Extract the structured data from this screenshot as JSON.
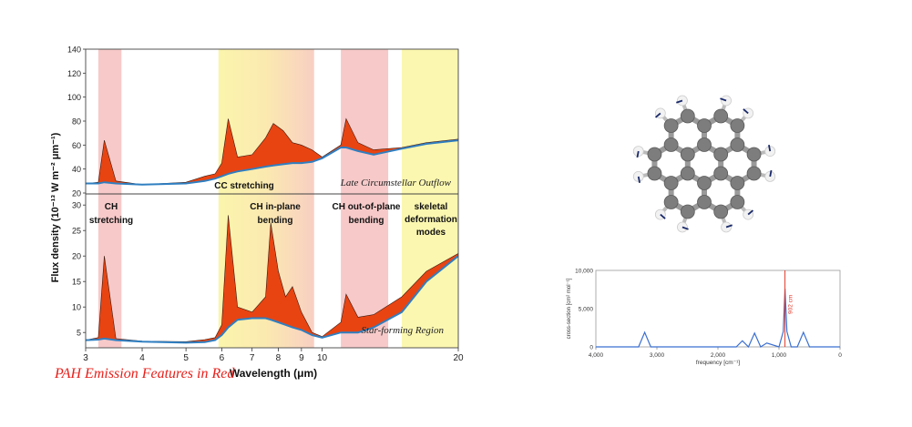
{
  "caption": "PAH Emission Features in Red",
  "colors": {
    "red_band": "#f7c9c9",
    "yellow_band": "#fbf7b0",
    "emission_fill": "#e84412",
    "continuum": "#2f7fc1",
    "caption": "#e8201b"
  },
  "chart_data": [
    {
      "type": "area",
      "y_axis_label": "Flux density (10⁻¹³ W m⁻² μm⁻¹)",
      "xlabel": "Wavelength (μm)",
      "x_scale": "log",
      "x_ticks": [
        3,
        4,
        5,
        6,
        7,
        8,
        9,
        10,
        20
      ],
      "xlim": [
        3,
        20
      ],
      "bands": [
        {
          "x0": 3.2,
          "x1": 3.6,
          "color": "red"
        },
        {
          "x0": 5.9,
          "x1": 9.6,
          "color": "yellow-to-red"
        },
        {
          "x0": 11.0,
          "x1": 14.0,
          "color": "red"
        },
        {
          "x0": 15.0,
          "x1": 20.0,
          "color": "yellow"
        }
      ],
      "panels": [
        {
          "name": "Late Circumstellar Outflow",
          "ylim": [
            20,
            140
          ],
          "y_ticks": [
            20,
            40,
            60,
            80,
            100,
            120,
            140
          ],
          "x": [
            3.0,
            3.2,
            3.3,
            3.5,
            4.0,
            5.0,
            5.5,
            5.8,
            6.0,
            6.2,
            6.5,
            7.0,
            7.5,
            7.8,
            8.2,
            8.6,
            9.0,
            9.5,
            10.0,
            11.0,
            11.3,
            12.0,
            13.0,
            15.0,
            17.0,
            20.0
          ],
          "continuum": [
            28,
            28,
            29,
            28,
            27,
            28,
            30,
            32,
            34,
            36,
            38,
            40,
            42,
            43,
            44,
            45,
            45,
            46,
            49,
            58,
            58,
            55,
            52,
            57,
            61,
            64
          ],
          "emission": [
            28,
            29,
            64,
            30,
            27,
            29,
            34,
            36,
            45,
            82,
            50,
            52,
            66,
            78,
            72,
            62,
            60,
            56,
            50,
            60,
            82,
            62,
            56,
            58,
            62,
            65
          ],
          "annotation": "CC stretching"
        },
        {
          "name": "Star-forming Region",
          "ylim": [
            2,
            32
          ],
          "y_ticks": [
            5,
            10,
            15,
            20,
            25,
            30
          ],
          "x": [
            3.0,
            3.2,
            3.3,
            3.5,
            4.0,
            5.0,
            5.5,
            5.8,
            6.0,
            6.2,
            6.5,
            7.0,
            7.5,
            7.7,
            8.0,
            8.3,
            8.6,
            9.0,
            9.5,
            10.0,
            11.0,
            11.3,
            12.0,
            13.0,
            15.0,
            17.0,
            20.0
          ],
          "continuum": [
            3.5,
            3.6,
            3.8,
            3.5,
            3.2,
            3.0,
            3.1,
            3.5,
            4.5,
            6.0,
            7.5,
            7.8,
            7.8,
            7.5,
            7.0,
            6.5,
            6.0,
            5.5,
            4.5,
            4.0,
            5.0,
            5.0,
            5.0,
            6.0,
            9.0,
            15.0,
            20.0
          ],
          "emission": [
            3.5,
            4.0,
            20.0,
            3.8,
            3.3,
            3.2,
            3.6,
            4.0,
            6.5,
            28.0,
            10.0,
            9.0,
            12.0,
            26.5,
            17.0,
            12.0,
            14.0,
            9.0,
            5.0,
            4.2,
            7.0,
            12.5,
            8.0,
            8.5,
            12.0,
            17.0,
            20.5
          ],
          "annotation": "Star-forming Region"
        }
      ],
      "band_labels": [
        "CH stretching",
        "CH in-plane bending",
        "CH out-of-plane bending",
        "skeletal deformation modes"
      ]
    },
    {
      "type": "line",
      "ylabel": "cross-section [cm² mol⁻¹]",
      "xlabel": "frequency [cm⁻¹]",
      "x_ticks": [
        "4,000",
        "3,000",
        "2,000",
        "1,000",
        "0"
      ],
      "y_ticks": [
        "0",
        "5,000",
        "10,000"
      ],
      "xlim": [
        4000,
        0
      ],
      "ylim": [
        0,
        10000
      ],
      "x": [
        4000,
        3300,
        3200,
        3100,
        1700,
        1600,
        1500,
        1400,
        1300,
        1200,
        1000,
        930,
        902,
        870,
        800,
        700,
        600,
        500,
        0
      ],
      "values": [
        0,
        0,
        1900,
        0,
        0,
        800,
        0,
        1800,
        0,
        500,
        0,
        2000,
        7600,
        2000,
        0,
        0,
        1900,
        0,
        0
      ],
      "marker_line_x": 902,
      "marker_label": "902 cm"
    }
  ]
}
